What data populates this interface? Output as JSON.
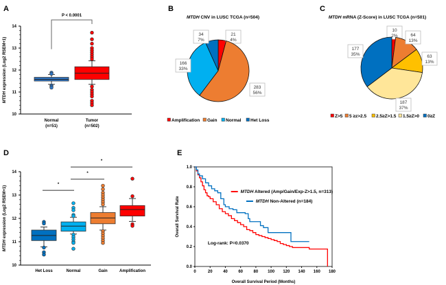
{
  "figure": {
    "panels": [
      "A",
      "B",
      "C",
      "D",
      "E"
    ]
  },
  "chart_data": [
    {
      "id": "A",
      "type": "box",
      "title": "",
      "annotation": "P < 0.0001",
      "xlabel": "",
      "ylabel_italic": "MTDH",
      "ylabel_rest": " expression (Log2 RSEM+1)",
      "ylim": [
        10,
        14
      ],
      "yticks": [
        "10",
        "11",
        "12",
        "13",
        "14"
      ],
      "categories": [
        "Normal\n(n=51)",
        "Tumor\n(n=502)"
      ],
      "cat_line1": [
        "Normal",
        "Tumor"
      ],
      "cat_line2": [
        "(n=51)",
        "(n=502)"
      ],
      "boxes": [
        {
          "name": "Normal",
          "color": "#2e75c4",
          "q1": 11.5,
          "median": 11.58,
          "q3": 11.67,
          "whisk_lo": 11.35,
          "whisk_hi": 11.8,
          "outliers": [
            11.88,
            11.83,
            11.3,
            11.25,
            11.2
          ]
        },
        {
          "name": "Tumor",
          "color": "#ff0000",
          "q1": 11.57,
          "median": 11.86,
          "q3": 12.15,
          "whisk_lo": 11.35,
          "whisk_hi": 12.42,
          "outliers": [
            13.7,
            13.4,
            13.2,
            13.0,
            12.9,
            12.8,
            12.7,
            12.6,
            12.5,
            11.25,
            11.1,
            11.0,
            10.9,
            10.8,
            10.6,
            10.5,
            10.4
          ]
        }
      ]
    },
    {
      "id": "B",
      "type": "pie",
      "title_italic": "MTDH",
      "title_rest": " CNV in LUSC TCGA (n=504)",
      "slices": [
        {
          "label": "Amplification",
          "value": 21,
          "pct": "4%",
          "color": "#ff0000"
        },
        {
          "label": "Gain",
          "value": 283,
          "pct": "56%",
          "color": "#ed7d31"
        },
        {
          "label": "Normal",
          "value": 166,
          "pct": "33%",
          "color": "#00b0f0"
        },
        {
          "label": "Het Loss",
          "value": 34,
          "pct": "7%",
          "color": "#0070c0"
        }
      ],
      "legend": [
        "Amplification",
        "Gain",
        "Normal",
        "Het Loss"
      ],
      "legend_position": "bottom"
    },
    {
      "id": "C",
      "type": "pie",
      "title_italic": "MTDH",
      "title_rest": " mRNA (Z-Score) in LUSC TCGA (n=501)",
      "slices": [
        {
          "label": "Z>5",
          "value": 10,
          "pct": "2%",
          "color": "#ff0000"
        },
        {
          "label": "5 ≥z>2.5",
          "value": 64,
          "pct": "13%",
          "color": "#ed7d31"
        },
        {
          "label": "2.5≥Z>1.5",
          "value": 63,
          "pct": "13%",
          "color": "#ffc000"
        },
        {
          "label": "1.5≥Z>0",
          "value": 187,
          "pct": "37%",
          "color": "#ffe699"
        },
        {
          "label": "0≥Z",
          "value": 177,
          "pct": "35%",
          "color": "#0070c0"
        }
      ],
      "legend": [
        "Z>5",
        "5 ≥z>2.5",
        "2.5≥Z>1.5",
        "1.5≥Z>0",
        "0≥Z"
      ],
      "legend_position": "bottom"
    },
    {
      "id": "D",
      "type": "box",
      "ylabel_italic": "MTDH",
      "ylabel_rest": " expression (Log2 RSEM+1)",
      "ylim": [
        10,
        14
      ],
      "yticks": [
        "10",
        "11",
        "12",
        "13",
        "14"
      ],
      "categories": [
        "Het Loss",
        "Normal",
        "Gain",
        "Amplification"
      ],
      "significance": [
        {
          "from": 0,
          "to": 1,
          "mark": "*"
        },
        {
          "from": 1,
          "to": 2,
          "mark": "*"
        },
        {
          "from": 1,
          "to": 3,
          "mark": "*"
        }
      ],
      "boxes": [
        {
          "name": "Het Loss",
          "color": "#0070c0",
          "q1": 11.05,
          "median": 11.27,
          "q3": 11.5,
          "whisk_lo": 10.78,
          "whisk_hi": 11.63,
          "outliers": [
            11.85,
            11.78,
            10.75,
            10.55,
            10.45
          ]
        },
        {
          "name": "Normal",
          "color": "#00b0f0",
          "q1": 11.45,
          "median": 11.67,
          "q3": 11.85,
          "whisk_lo": 11.33,
          "whisk_hi": 12.05,
          "outliers": [
            12.65,
            12.45,
            12.35,
            12.15,
            12.1,
            11.3,
            11.2,
            11.1,
            11.0,
            10.95,
            10.7
          ]
        },
        {
          "name": "Gain",
          "color": "#ed7d31",
          "q1": 11.77,
          "median": 12.02,
          "q3": 12.25,
          "whisk_lo": 11.5,
          "whisk_hi": 12.5,
          "outliers": [
            13.4,
            13.25,
            13.1,
            13.0,
            12.9,
            12.8,
            12.7,
            12.6,
            11.45,
            11.35,
            11.25,
            11.15,
            11.05,
            10.95
          ]
        },
        {
          "name": "Amplification",
          "color": "#ff0000",
          "q1": 12.1,
          "median": 12.38,
          "q3": 12.55,
          "whisk_lo": 11.87,
          "whisk_hi": 12.85,
          "outliers": [
            13.7,
            12.95,
            11.75,
            11.68
          ]
        }
      ]
    },
    {
      "id": "E",
      "type": "line",
      "subtype": "kaplan-meier",
      "xlabel": "Overall Survival Period (Months)",
      "ylabel": "Overall Survival Rate",
      "xlim": [
        0,
        180
      ],
      "ylim": [
        0,
        1.0
      ],
      "xticks": [
        "0",
        "20",
        "40",
        "60",
        "80",
        "100",
        "120",
        "140",
        "160",
        "180"
      ],
      "yticks": [
        "0.0",
        "0.2",
        "0.4",
        "0.6",
        "0.8",
        "1.0"
      ],
      "annotation": "Log-rank: P=0.0370",
      "series": [
        {
          "name_italic": "MTDH",
          "name_rest": " Altered (Amp/Gain/Exp-Z>1.5, n=313)",
          "color": "#ff0000",
          "x": [
            0,
            2,
            4,
            6,
            8,
            10,
            12,
            14,
            16,
            18,
            20,
            24,
            28,
            32,
            36,
            40,
            44,
            48,
            52,
            56,
            60,
            64,
            68,
            72,
            76,
            80,
            84,
            88,
            92,
            96,
            100,
            104,
            108,
            112,
            116,
            120,
            124,
            128,
            140,
            150,
            160,
            170,
            173,
            174
          ],
          "y": [
            1.0,
            0.96,
            0.92,
            0.89,
            0.85,
            0.81,
            0.77,
            0.74,
            0.71,
            0.7,
            0.68,
            0.65,
            0.62,
            0.58,
            0.55,
            0.53,
            0.51,
            0.48,
            0.46,
            0.44,
            0.42,
            0.4,
            0.37,
            0.36,
            0.34,
            0.32,
            0.31,
            0.3,
            0.29,
            0.28,
            0.27,
            0.26,
            0.25,
            0.23,
            0.22,
            0.21,
            0.2,
            0.19,
            0.19,
            0.175,
            0.175,
            0.175,
            0.175,
            0.0
          ]
        },
        {
          "name_italic": "MTDH",
          "name_rest": " Non-Altered (n=184)",
          "color": "#0070c0",
          "x": [
            0,
            2,
            4,
            6,
            10,
            14,
            18,
            22,
            26,
            30,
            34,
            38,
            40,
            45,
            50,
            55,
            60,
            66,
            70,
            72,
            80,
            86,
            90,
            96,
            100,
            110,
            120,
            126,
            130,
            140,
            150
          ],
          "y": [
            1.0,
            0.97,
            0.93,
            0.91,
            0.88,
            0.84,
            0.81,
            0.78,
            0.76,
            0.74,
            0.68,
            0.62,
            0.6,
            0.58,
            0.57,
            0.54,
            0.54,
            0.53,
            0.48,
            0.45,
            0.45,
            0.41,
            0.39,
            0.34,
            0.34,
            0.34,
            0.34,
            0.25,
            0.25,
            0.25,
            0.25
          ]
        }
      ],
      "legend_position": "top-right"
    }
  ]
}
